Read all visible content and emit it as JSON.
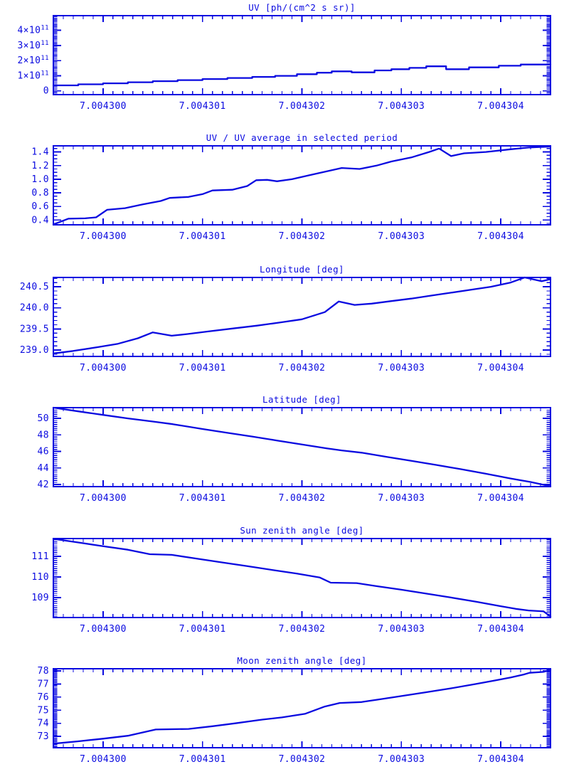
{
  "page": {
    "background": "#ffffff",
    "accent_color": "#0a0ae0"
  },
  "chart_data": {
    "type": "line",
    "layout": "6 stacked panels sharing one unlabeled time axis",
    "grid": "off",
    "legend": "none",
    "line_color": "#0a0ae0",
    "x_axis": {
      "range": [
        7.0042995,
        7.0043045
      ],
      "tick_values": [
        7.0043,
        7.004301,
        7.004302,
        7.004303,
        7.004304
      ],
      "tick_labels": [
        "7.004300",
        "7.004301",
        "7.004302",
        "7.004303",
        "7.004304"
      ],
      "minor_step": 1e-07
    },
    "panels": [
      {
        "title": "UV [ph/(cm^2 s sr)]",
        "ylim": [
          -25000000000.0,
          497000000000.0
        ],
        "y_minor_step": 10000000000.0,
        "y_ticks": [
          {
            "v": 0,
            "label": "0"
          },
          {
            "v": 100000000000.0,
            "label": "1×10",
            "exp": "11"
          },
          {
            "v": 200000000000.0,
            "label": "2×10",
            "exp": "11"
          },
          {
            "v": 300000000000.0,
            "label": "3×10",
            "exp": "11"
          },
          {
            "v": 400000000000.0,
            "label": "4×10",
            "exp": "11"
          }
        ],
        "x": [
          7.0042995,
          7.00429975,
          7.00429975,
          7.0043,
          7.0043,
          7.00430025,
          7.00430025,
          7.0043005,
          7.0043005,
          7.00430075,
          7.00430075,
          7.004301,
          7.004301,
          7.00430125,
          7.00430125,
          7.0043015,
          7.0043015,
          7.00430173,
          7.00430173,
          7.00430195,
          7.00430195,
          7.00430215,
          7.00430215,
          7.0043023,
          7.0043023,
          7.0043025,
          7.0043025,
          7.00430273,
          7.00430273,
          7.0043029,
          7.0043029,
          7.00430308,
          7.00430308,
          7.00430325,
          7.00430325,
          7.00430345,
          7.00430345,
          7.00430368,
          7.00430368,
          7.00430398,
          7.00430398,
          7.0043042,
          7.0043042,
          7.0043045
        ],
        "y": [
          36000000000.0,
          36000000000.0,
          43000000000.0,
          43000000000.0,
          50000000000.0,
          50000000000.0,
          57000000000.0,
          57000000000.0,
          64000000000.0,
          64000000000.0,
          71000000000.0,
          71000000000.0,
          78000000000.0,
          78000000000.0,
          85000000000.0,
          85000000000.0,
          92000000000.0,
          92000000000.0,
          99000000000.0,
          99000000000.0,
          110000000000.0,
          110000000000.0,
          120000000000.0,
          120000000000.0,
          129000000000.0,
          129000000000.0,
          122000000000.0,
          122000000000.0,
          135000000000.0,
          135000000000.0,
          143000000000.0,
          143000000000.0,
          152000000000.0,
          152000000000.0,
          162000000000.0,
          162000000000.0,
          143000000000.0,
          143000000000.0,
          155000000000.0,
          155000000000.0,
          166000000000.0,
          166000000000.0,
          174000000000.0,
          174000000000.0
        ]
      },
      {
        "title": "UV / UV average in selected period",
        "ylim": [
          0.33,
          1.49
        ],
        "y_minor_step": 0.05,
        "y_ticks": [
          {
            "v": 0.4,
            "label": "0.4"
          },
          {
            "v": 0.6,
            "label": "0.6"
          },
          {
            "v": 0.8,
            "label": "0.8"
          },
          {
            "v": 1.0,
            "label": "1.0"
          },
          {
            "v": 1.2,
            "label": "1.2"
          },
          {
            "v": 1.4,
            "label": "1.4"
          }
        ],
        "x": [
          7.0042995,
          7.00429965,
          7.00429982,
          7.00429993,
          7.00430004,
          7.00430022,
          7.0043004,
          7.00430058,
          7.00430067,
          7.00430086,
          7.004301,
          7.0043011,
          7.0043013,
          7.00430145,
          7.00430154,
          7.00430165,
          7.00430175,
          7.0043019,
          7.00430208,
          7.0043024,
          7.00430258,
          7.00430275,
          7.0043029,
          7.0043031,
          7.00430328,
          7.00430338,
          7.0043035,
          7.00430363,
          7.00430385,
          7.0043041,
          7.00430428,
          7.0043045
        ],
        "y": [
          0.335,
          0.42,
          0.425,
          0.44,
          0.55,
          0.575,
          0.63,
          0.68,
          0.725,
          0.74,
          0.78,
          0.835,
          0.845,
          0.9,
          0.985,
          0.99,
          0.97,
          1.0,
          1.06,
          1.165,
          1.15,
          1.2,
          1.26,
          1.32,
          1.4,
          1.45,
          1.34,
          1.38,
          1.4,
          1.44,
          1.465,
          1.48
        ]
      },
      {
        "title": "Longitude [deg]",
        "ylim": [
          238.85,
          240.72
        ],
        "y_minor_step": 0.1,
        "y_ticks": [
          {
            "v": 239.0,
            "label": "239.0"
          },
          {
            "v": 239.5,
            "label": "239.5"
          },
          {
            "v": 240.0,
            "label": "240.0"
          },
          {
            "v": 240.5,
            "label": "240.5"
          }
        ],
        "x": [
          7.0042995,
          7.0042997,
          7.00429995,
          7.00430015,
          7.00430035,
          7.0043005,
          7.00430069,
          7.00430085,
          7.00430105,
          7.0043013,
          7.00430155,
          7.0043018,
          7.004302,
          7.00430223,
          7.00430237,
          7.00430253,
          7.0043027,
          7.0043029,
          7.0043031,
          7.0043033,
          7.0043035,
          7.0043037,
          7.0043039,
          7.0043041,
          7.00430424,
          7.00430441,
          7.0043045
        ],
        "y": [
          238.92,
          238.98,
          239.07,
          239.15,
          239.28,
          239.42,
          239.34,
          239.38,
          239.44,
          239.51,
          239.58,
          239.66,
          239.73,
          239.9,
          240.15,
          240.07,
          240.1,
          240.16,
          240.22,
          240.29,
          240.36,
          240.43,
          240.5,
          240.6,
          240.72,
          240.63,
          240.68
        ]
      },
      {
        "title": "Latitude [deg]",
        "ylim": [
          41.74,
          51.3
        ],
        "y_minor_step": 0.25,
        "y_ticks": [
          {
            "v": 42,
            "label": "42"
          },
          {
            "v": 44,
            "label": "44"
          },
          {
            "v": 46,
            "label": "46"
          },
          {
            "v": 48,
            "label": "48"
          },
          {
            "v": 50,
            "label": "50"
          }
        ],
        "x": [
          7.0042995,
          7.00429975,
          7.0043,
          7.00430025,
          7.0043005,
          7.0043007,
          7.004301,
          7.00430125,
          7.0043015,
          7.00430175,
          7.004302,
          7.00430225,
          7.0043024,
          7.0043026,
          7.00430285,
          7.0043031,
          7.00430335,
          7.0043036,
          7.00430385,
          7.0043041,
          7.0043043,
          7.0043045
        ],
        "y": [
          51.3,
          50.85,
          50.42,
          50.0,
          49.62,
          49.3,
          48.72,
          48.25,
          47.8,
          47.32,
          46.85,
          46.37,
          46.12,
          45.85,
          45.35,
          44.87,
          44.37,
          43.85,
          43.3,
          42.72,
          42.3,
          41.78
        ]
      },
      {
        "title": "Sun zenith angle [deg]",
        "ylim": [
          108.03,
          111.86
        ],
        "y_minor_step": 0.1,
        "y_ticks": [
          {
            "v": 109,
            "label": "109"
          },
          {
            "v": 110,
            "label": "110"
          },
          {
            "v": 111,
            "label": "111"
          }
        ],
        "x": [
          7.0042995,
          7.00429975,
          7.0043,
          7.00430025,
          7.00430047,
          7.00430069,
          7.00430095,
          7.0043012,
          7.00430145,
          7.0043017,
          7.00430195,
          7.00430218,
          7.00430229,
          7.00430255,
          7.00430275,
          7.004303,
          7.00430325,
          7.0043035,
          7.00430375,
          7.004304,
          7.00430415,
          7.00430428,
          7.00430443,
          7.0043045
        ],
        "y": [
          111.85,
          111.67,
          111.49,
          111.32,
          111.1,
          111.07,
          110.88,
          110.7,
          110.52,
          110.34,
          110.16,
          109.97,
          109.72,
          109.7,
          109.55,
          109.38,
          109.19,
          109.0,
          108.8,
          108.58,
          108.45,
          108.37,
          108.33,
          108.08
        ]
      },
      {
        "title": "Moon zenith angle [deg]",
        "ylim": [
          72.14,
          78.16
        ],
        "y_minor_step": 0.1,
        "y_ticks": [
          {
            "v": 73,
            "label": "73"
          },
          {
            "v": 74,
            "label": "74"
          },
          {
            "v": 75,
            "label": "75"
          },
          {
            "v": 76,
            "label": "76"
          },
          {
            "v": 77,
            "label": "77"
          },
          {
            "v": 78,
            "label": "78"
          }
        ],
        "x": [
          7.0042995,
          7.00429975,
          7.0043,
          7.00430025,
          7.00430053,
          7.00430086,
          7.0043011,
          7.00430135,
          7.0043016,
          7.0043018,
          7.00430203,
          7.00430223,
          7.00430238,
          7.0043026,
          7.0043028,
          7.004303,
          7.00430325,
          7.0043035,
          7.00430375,
          7.00430395,
          7.0043041,
          7.00430423,
          7.00430429,
          7.00430443,
          7.0043045
        ],
        "y": [
          72.45,
          72.63,
          72.83,
          73.05,
          73.53,
          73.57,
          73.78,
          74.02,
          74.28,
          74.45,
          74.72,
          75.28,
          75.55,
          75.62,
          75.85,
          76.08,
          76.37,
          76.67,
          77.0,
          77.28,
          77.5,
          77.72,
          77.85,
          77.92,
          78.08
        ]
      }
    ]
  }
}
